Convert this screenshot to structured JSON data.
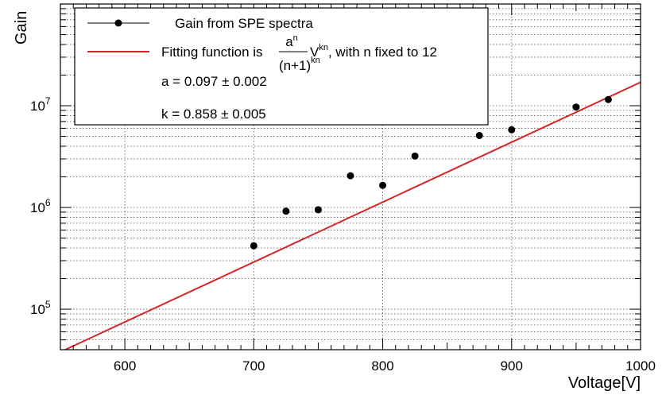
{
  "chart_data": {
    "type": "scatter",
    "title": "",
    "xlabel": "Voltage[V]",
    "ylabel": "Gain",
    "xlim": [
      550,
      1000
    ],
    "ylim": [
      40000,
      100000000
    ],
    "yscale": "log",
    "grid": true,
    "legend_position": "top-left",
    "x_ticks": [
      {
        "value": 600,
        "label": "600"
      },
      {
        "value": 700,
        "label": "700"
      },
      {
        "value": 800,
        "label": "800"
      },
      {
        "value": 900,
        "label": "900"
      },
      {
        "value": 1000,
        "label": "1000"
      }
    ],
    "y_ticks": [
      {
        "value": 100000,
        "base": "10",
        "exp": "5"
      },
      {
        "value": 1000000,
        "base": "10",
        "exp": "6"
      },
      {
        "value": 10000000,
        "base": "10",
        "exp": "7"
      }
    ],
    "series": [
      {
        "name": "Gain from SPE spectra",
        "marker": "circle",
        "color": "#000000",
        "x": [
          700,
          725,
          750,
          775,
          800,
          825,
          875,
          900,
          950,
          975
        ],
        "y": [
          420000,
          920000,
          950000,
          2050000,
          1650000,
          3200000,
          5100000,
          5800000,
          9700000,
          11500000
        ]
      },
      {
        "name": "Fitting function",
        "line": true,
        "color": "#d62728",
        "x": [
          550,
          1000
        ],
        "y": [
          38000,
          17000000
        ]
      }
    ],
    "legend": {
      "series1_label": "Gain from SPE spectra",
      "fit_prefix": "Fitting function is ",
      "fit_numerator": "a",
      "fit_numerator_exp": "n",
      "fit_denominator": "(n+1)",
      "fit_denominator_exp": "kn",
      "fit_var": "V",
      "fit_var_exp": "kn",
      "fit_suffix": ", with n fixed to 12",
      "param_a": "a = 0.097 ± 0.002",
      "param_k": "k = 0.858 ± 0.005"
    },
    "colors": {
      "fit_line": "#d62728",
      "points": "#000000"
    }
  }
}
